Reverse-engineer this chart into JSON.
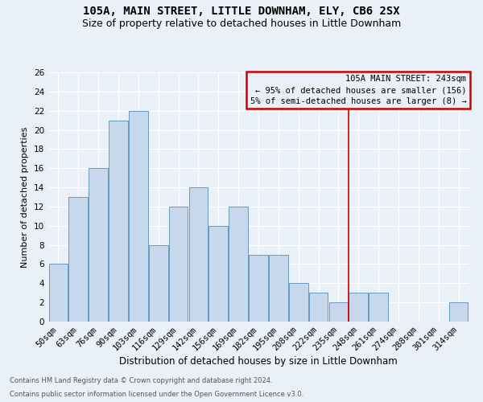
{
  "title": "105A, MAIN STREET, LITTLE DOWNHAM, ELY, CB6 2SX",
  "subtitle": "Size of property relative to detached houses in Little Downham",
  "xlabel": "Distribution of detached houses by size in Little Downham",
  "ylabel": "Number of detached properties",
  "footnote1": "Contains HM Land Registry data © Crown copyright and database right 2024.",
  "footnote2": "Contains public sector information licensed under the Open Government Licence v3.0.",
  "bin_labels": [
    "50sqm",
    "63sqm",
    "76sqm",
    "90sqm",
    "103sqm",
    "116sqm",
    "129sqm",
    "142sqm",
    "156sqm",
    "169sqm",
    "182sqm",
    "195sqm",
    "208sqm",
    "222sqm",
    "235sqm",
    "248sqm",
    "261sqm",
    "274sqm",
    "288sqm",
    "301sqm",
    "314sqm"
  ],
  "bar_heights": [
    6,
    13,
    16,
    21,
    22,
    8,
    12,
    14,
    10,
    12,
    7,
    7,
    4,
    3,
    2,
    3,
    3,
    0,
    0,
    0,
    2
  ],
  "bar_color": "#c8d8ec",
  "bar_edge_color": "#6699bb",
  "vline_color": "#cc0000",
  "vline_x_index": 15,
  "legend_title": "105A MAIN STREET: 243sqm",
  "legend_text1": "← 95% of detached houses are smaller (156)",
  "legend_text2": "5% of semi-detached houses are larger (8) →",
  "legend_box_color": "#cc0000",
  "ylim": [
    0,
    26
  ],
  "yticks": [
    0,
    2,
    4,
    6,
    8,
    10,
    12,
    14,
    16,
    18,
    20,
    22,
    24,
    26
  ],
  "background_color": "#eaf0f8",
  "grid_color": "#ffffff",
  "title_fontsize": 10,
  "subtitle_fontsize": 9,
  "ylabel_fontsize": 8,
  "xlabel_fontsize": 8.5,
  "tick_fontsize": 7.5,
  "legend_fontsize": 7.5,
  "footnote_fontsize": 6.0
}
